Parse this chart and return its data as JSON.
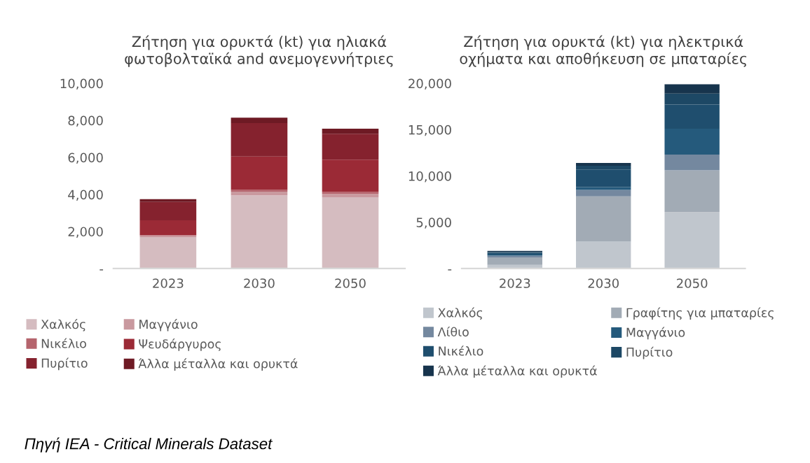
{
  "chart_data": [
    {
      "type": "bar",
      "stacked": true,
      "title": "Ζήτηση για ορυκτά (kt) για ηλιακά\nφωτοβολταϊκά and ανεμογεννήτριες",
      "categories": [
        "2023",
        "2030",
        "2050"
      ],
      "ylim": [
        0,
        10000
      ],
      "yticks": [
        {
          "value": 0,
          "label": "-"
        },
        {
          "value": 2000,
          "label": "2,000"
        },
        {
          "value": 4000,
          "label": "4,000"
        },
        {
          "value": 6000,
          "label": "6,000"
        },
        {
          "value": 8000,
          "label": "8,000"
        },
        {
          "value": 10000,
          "label": "10,000"
        }
      ],
      "grid": false,
      "legend": "bottom",
      "series": [
        {
          "name": "Χαλκός",
          "color": "#d5bcc0",
          "values": [
            1700,
            3950,
            3850
          ]
        },
        {
          "name": "Μαγγάνιο",
          "color": "#c9999f",
          "values": [
            80,
            200,
            180
          ]
        },
        {
          "name": "Νικέλιο",
          "color": "#b5646d",
          "values": [
            20,
            100,
            100
          ]
        },
        {
          "name": "Ψευδάργυρος",
          "color": "#9b2a36",
          "values": [
            800,
            1800,
            1750
          ]
        },
        {
          "name": "Πυρίτιο",
          "color": "#85222e",
          "values": [
            1000,
            1800,
            1400
          ]
        },
        {
          "name": "Άλλα μέταλλα και ορυκτά",
          "color": "#6e1a24",
          "values": [
            150,
            300,
            270
          ]
        }
      ],
      "annotations": [
        "Πηγή IEA - Critical Minerals Dataset"
      ]
    },
    {
      "type": "bar",
      "stacked": true,
      "title": "Ζήτηση για ορυκτά (kt) για ηλεκτρικά\nοχήματα και αποθήκευση σε μπαταρίες",
      "categories": [
        "2023",
        "2030",
        "2050"
      ],
      "ylim": [
        0,
        20000
      ],
      "yticks": [
        {
          "value": 0,
          "label": "-"
        },
        {
          "value": 5000,
          "label": "5,000"
        },
        {
          "value": 10000,
          "label": "10,000"
        },
        {
          "value": 15000,
          "label": "15,000"
        },
        {
          "value": 20000,
          "label": "20,000"
        }
      ],
      "grid": false,
      "legend": "bottom",
      "series": [
        {
          "name": "Χαλκός",
          "color": "#c0c6cd",
          "values": [
            400,
            2900,
            6100
          ]
        },
        {
          "name": "Γραφίτης για μπαταρίες",
          "color": "#a2abb5",
          "values": [
            800,
            4900,
            4500
          ]
        },
        {
          "name": "Λίθιο",
          "color": "#74889f",
          "values": [
            200,
            700,
            1700
          ]
        },
        {
          "name": "Μαγγάνιο",
          "color": "#255a7c",
          "values": [
            100,
            300,
            2800
          ]
        },
        {
          "name": "Νικέλιο",
          "color": "#1f4e6e",
          "values": [
            200,
            1900,
            2600
          ]
        },
        {
          "name": "Πυρίτιο",
          "color": "#1d4865",
          "values": [
            100,
            400,
            1200
          ]
        },
        {
          "name": "Άλλα μέταλλα και ορυκτά",
          "color": "#17344d",
          "values": [
            100,
            300,
            1000
          ]
        }
      ]
    }
  ]
}
